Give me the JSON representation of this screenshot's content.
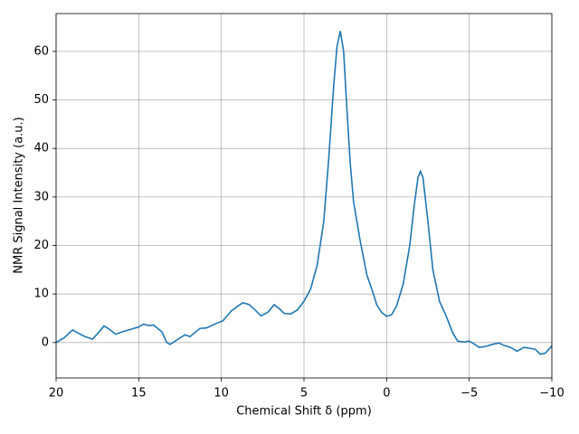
{
  "chart_data": {
    "type": "line",
    "xlabel": "Chemical Shift δ (ppm)",
    "ylabel": "NMR Signal Intensity (a.u.)",
    "xlim": [
      20,
      -10
    ],
    "ylim": [
      -7.3,
      67.8
    ],
    "xticks": [
      20,
      15,
      10,
      5,
      0,
      {
        "value": -5,
        "label": "−5"
      },
      {
        "value": -10,
        "label": "−10"
      }
    ],
    "yticks": [
      0,
      10,
      20,
      30,
      40,
      50,
      60
    ],
    "grid": true,
    "series": [
      {
        "color": "#1f77b4",
        "x": [
          20,
          19.5,
          19.0,
          18.7,
          18.3,
          17.8,
          17.5,
          17.1,
          16.8,
          16.4,
          16.0,
          15.5,
          15.0,
          14.7,
          14.4,
          14.1,
          13.6,
          13.3,
          13.1,
          12.7,
          12.2,
          11.9,
          11.3,
          10.9,
          10.4,
          9.9,
          9.4,
          9.0,
          8.7,
          8.3,
          7.9,
          7.6,
          7.2,
          6.8,
          6.5,
          6.2,
          5.8,
          5.4,
          5.0,
          4.6,
          4.2,
          3.8,
          3.5,
          3.2,
          3.0,
          2.8,
          2.6,
          2.4,
          2.2,
          2.0,
          1.6,
          1.2,
          0.8,
          0.6,
          0.3,
          0.0,
          -0.3,
          -0.6,
          -1.0,
          -1.4,
          -1.7,
          -1.9,
          -2.05,
          -2.2,
          -2.5,
          -2.8,
          -3.2,
          -3.6,
          -4.0,
          -4.3,
          -4.7,
          -5.0,
          -5.3,
          -5.6,
          -6.0,
          -6.5,
          -6.8,
          -7.1,
          -7.5,
          -7.9,
          -8.3,
          -8.7,
          -9.0,
          -9.3,
          -9.6,
          -10
        ],
        "values": [
          0,
          1,
          2.6,
          2,
          1.3,
          0.7,
          1.8,
          3.4,
          2.8,
          1.7,
          2.2,
          2.7,
          3.2,
          3.8,
          3.5,
          3.6,
          2.2,
          0,
          -0.4,
          0.5,
          1.6,
          1.2,
          2.9,
          3,
          3.8,
          4.5,
          6.5,
          7.5,
          8.2,
          7.8,
          6.5,
          5.5,
          6.2,
          7.8,
          7,
          6,
          5.9,
          6.7,
          8.5,
          11,
          16,
          25,
          38,
          53,
          61,
          64.2,
          60,
          48,
          37,
          29,
          21,
          14,
          10,
          7.8,
          6.2,
          5.4,
          5.7,
          7.5,
          12,
          20,
          29,
          34,
          35.3,
          34,
          25,
          15,
          8.5,
          5.5,
          2,
          0.3,
          0.1,
          0.3,
          -0.3,
          -1,
          -0.8,
          -0.3,
          -0.1,
          -0.6,
          -1,
          -1.8,
          -1,
          -1.2,
          -1.4,
          -2.4,
          -2.2,
          -0.7
        ]
      }
    ]
  }
}
